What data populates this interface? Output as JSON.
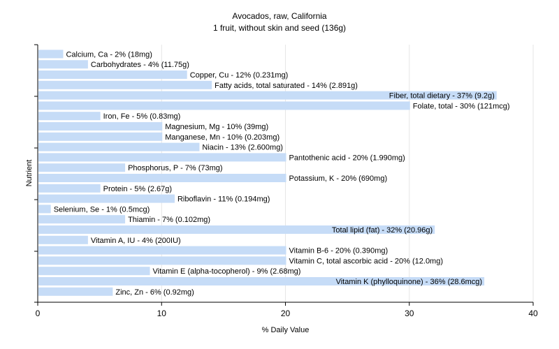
{
  "chart_data": {
    "type": "bar",
    "orientation": "horizontal",
    "title": "Avocados, raw, California",
    "subtitle": "1 fruit, without skin and seed (136g)",
    "xlabel": "% Daily Value",
    "ylabel": "Nutrient",
    "xlim": [
      0,
      40
    ],
    "xticks": [
      0,
      10,
      20,
      30,
      40
    ],
    "grid": true,
    "bar_color": "#c6dcf7",
    "categories": [
      "Calcium, Ca",
      "Carbohydrates",
      "Copper, Cu",
      "Fatty acids, total saturated",
      "Fiber, total dietary",
      "Folate, total",
      "Iron, Fe",
      "Magnesium, Mg",
      "Manganese, Mn",
      "Niacin",
      "Pantothenic acid",
      "Phosphorus, P",
      "Potassium, K",
      "Protein",
      "Riboflavin",
      "Selenium, Se",
      "Thiamin",
      "Total lipid (fat)",
      "Vitamin A, IU",
      "Vitamin B-6",
      "Vitamin C, total ascorbic acid",
      "Vitamin E (alpha-tocopherol)",
      "Vitamin K (phylloquinone)",
      "Zinc, Zn"
    ],
    "values": [
      2,
      4,
      12,
      14,
      37,
      30,
      5,
      10,
      10,
      13,
      20,
      7,
      20,
      5,
      11,
      1,
      7,
      32,
      4,
      20,
      20,
      9,
      36,
      6
    ],
    "labels": [
      "Calcium, Ca - 2% (18mg)",
      "Carbohydrates - 4% (11.75g)",
      "Copper, Cu - 12% (0.231mg)",
      "Fatty acids, total saturated - 14% (2.891g)",
      "Fiber, total dietary - 37% (9.2g)",
      "Folate, total - 30% (121mcg)",
      "Iron, Fe - 5% (0.83mg)",
      "Magnesium, Mg - 10% (39mg)",
      "Manganese, Mn - 10% (0.203mg)",
      "Niacin - 13% (2.600mg)",
      "Pantothenic acid - 20% (1.990mg)",
      "Phosphorus, P - 7% (73mg)",
      "Potassium, K - 20% (690mg)",
      "Protein - 5% (2.67g)",
      "Riboflavin - 11% (0.194mg)",
      "Selenium, Se - 1% (0.5mcg)",
      "Thiamin - 7% (0.102mg)",
      "Total lipid (fat) - 32% (20.96g)",
      "Vitamin A, IU - 4% (200IU)",
      "Vitamin B-6 - 20% (0.390mg)",
      "Vitamin C, total ascorbic acid - 20% (12.0mg)",
      "Vitamin E (alpha-tocopherol) - 9% (2.68mg)",
      "Vitamin K (phylloquinone) - 36% (28.6mcg)",
      "Zinc, Zn - 6% (0.92mg)"
    ]
  }
}
